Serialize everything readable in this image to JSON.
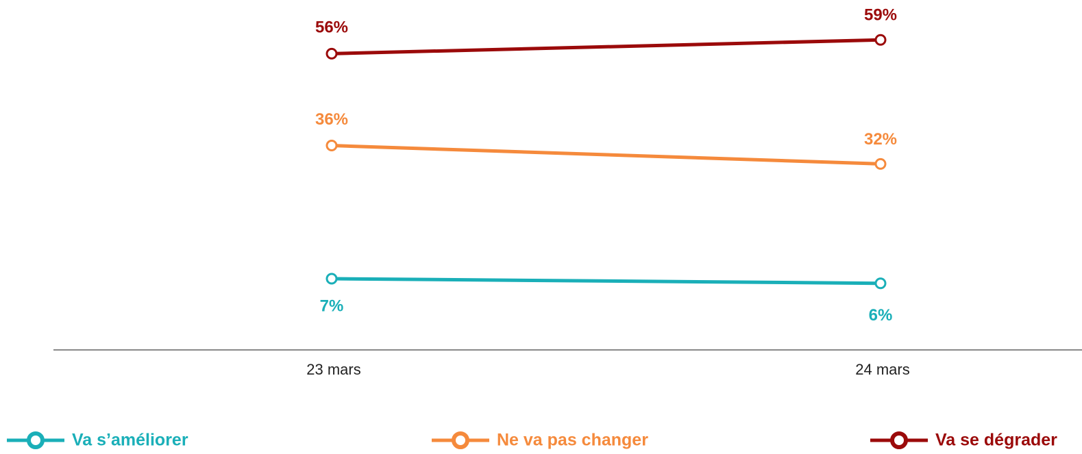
{
  "chart_data": {
    "type": "line",
    "categories": [
      "23 mars",
      "24 mars"
    ],
    "series": [
      {
        "name": "Va s’améliorer",
        "color": "#1aafb8",
        "values": [
          7,
          6
        ],
        "value_labels": [
          "7%",
          "6%"
        ]
      },
      {
        "name": "Ne va pas changer",
        "color": "#f58a3c",
        "values": [
          36,
          32
        ],
        "value_labels": [
          "36%",
          "32%"
        ]
      },
      {
        "name": "Va se dégrader",
        "color": "#9b0a0a",
        "values": [
          56,
          59
        ],
        "value_labels": [
          "56%",
          "59%"
        ]
      }
    ],
    "ylim": [
      -8.5,
      65
    ]
  }
}
